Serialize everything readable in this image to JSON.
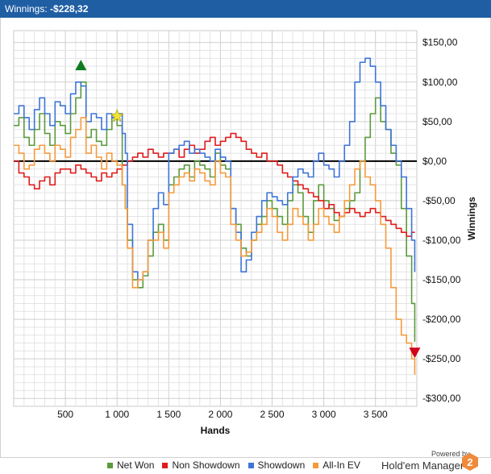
{
  "titlebar": {
    "label": "Winnings:",
    "amount": "-$228,32"
  },
  "chart_data": {
    "type": "line",
    "xlabel": "Hands",
    "ylabel": "Winnings",
    "xlim": [
      0,
      3900
    ],
    "ylim": [
      -310,
      165
    ],
    "x_ticks": [
      {
        "value": 500,
        "label": "500"
      },
      {
        "value": 1000,
        "label": "1 000"
      },
      {
        "value": 1500,
        "label": "1 500"
      },
      {
        "value": 2000,
        "label": "2 000"
      },
      {
        "value": 2500,
        "label": "2 500"
      },
      {
        "value": 3000,
        "label": "3 000"
      },
      {
        "value": 3500,
        "label": "3 500"
      }
    ],
    "y_ticks": [
      {
        "value": 150,
        "label": "$150,00"
      },
      {
        "value": 100,
        "label": "$100,00"
      },
      {
        "value": 50,
        "label": "$50,00"
      },
      {
        "value": 0,
        "label": "$0,00"
      },
      {
        "value": -50,
        "label": "-$50,00"
      },
      {
        "value": -100,
        "label": "-$100,00"
      },
      {
        "value": -150,
        "label": "-$150,00"
      },
      {
        "value": -200,
        "label": "-$200,00"
      },
      {
        "value": -250,
        "label": "-$250,00"
      },
      {
        "value": -300,
        "label": "-$300,00"
      }
    ],
    "grid": true,
    "legend_position": "bottom",
    "zero_line": true,
    "series": [
      {
        "name": "Net Won",
        "color": "#5b9a3c",
        "x": [
          0,
          50,
          100,
          150,
          200,
          250,
          300,
          350,
          400,
          450,
          500,
          550,
          600,
          650,
          700,
          750,
          800,
          850,
          900,
          950,
          1000,
          1050,
          1080,
          1100,
          1150,
          1200,
          1250,
          1300,
          1350,
          1400,
          1450,
          1500,
          1550,
          1600,
          1650,
          1700,
          1750,
          1800,
          1850,
          1900,
          1950,
          2000,
          2050,
          2100,
          2150,
          2200,
          2250,
          2300,
          2350,
          2400,
          2450,
          2500,
          2550,
          2600,
          2650,
          2700,
          2750,
          2800,
          2850,
          2900,
          2950,
          3000,
          3050,
          3100,
          3150,
          3200,
          3250,
          3300,
          3350,
          3400,
          3450,
          3500,
          3550,
          3600,
          3650,
          3700,
          3750,
          3800,
          3850,
          3880
        ],
        "y": [
          45,
          55,
          30,
          20,
          40,
          60,
          35,
          20,
          50,
          45,
          35,
          60,
          80,
          100,
          30,
          40,
          25,
          20,
          40,
          55,
          45,
          -30,
          -60,
          -100,
          -150,
          -160,
          -145,
          -120,
          -90,
          -80,
          -100,
          -30,
          -20,
          -10,
          -5,
          -20,
          0,
          -5,
          -10,
          -20,
          10,
          -5,
          -10,
          -60,
          -80,
          -110,
          -120,
          -100,
          -80,
          -70,
          -50,
          -60,
          -70,
          -80,
          -50,
          -30,
          -40,
          -70,
          -90,
          -50,
          -30,
          -50,
          -60,
          -75,
          -70,
          -60,
          -50,
          -40,
          0,
          30,
          60,
          80,
          50,
          40,
          10,
          -5,
          -60,
          -120,
          -180,
          -228.32
        ]
      },
      {
        "name": "Non Showdown",
        "color": "#e01b1b",
        "x": [
          0,
          50,
          100,
          150,
          200,
          250,
          300,
          350,
          400,
          450,
          500,
          550,
          600,
          650,
          700,
          750,
          800,
          850,
          900,
          950,
          1000,
          1050,
          1100,
          1150,
          1200,
          1250,
          1300,
          1350,
          1400,
          1450,
          1500,
          1550,
          1600,
          1650,
          1700,
          1750,
          1800,
          1850,
          1900,
          1950,
          2000,
          2050,
          2100,
          2150,
          2200,
          2250,
          2300,
          2350,
          2400,
          2450,
          2500,
          2550,
          2600,
          2650,
          2700,
          2750,
          2800,
          2850,
          2900,
          2950,
          3000,
          3050,
          3100,
          3150,
          3200,
          3250,
          3300,
          3350,
          3400,
          3450,
          3500,
          3550,
          3600,
          3650,
          3700,
          3750,
          3800,
          3850,
          3880
        ],
        "y": [
          0,
          -15,
          -20,
          -30,
          -35,
          -25,
          -20,
          -30,
          -15,
          -10,
          -10,
          -15,
          -5,
          -10,
          -15,
          -20,
          -25,
          -15,
          -20,
          -15,
          -10,
          -5,
          0,
          5,
          10,
          5,
          15,
          10,
          5,
          10,
          10,
          15,
          5,
          15,
          20,
          10,
          15,
          25,
          30,
          20,
          25,
          30,
          35,
          30,
          25,
          15,
          10,
          5,
          10,
          0,
          0,
          -5,
          -15,
          -20,
          -25,
          -30,
          -35,
          -40,
          -45,
          -50,
          -60,
          -55,
          -65,
          -70,
          -65,
          -60,
          -65,
          -70,
          -65,
          -60,
          -65,
          -70,
          -75,
          -80,
          -85,
          -90,
          -95,
          -90,
          -90
        ]
      },
      {
        "name": "Showdown",
        "color": "#3d74d8",
        "x": [
          0,
          50,
          100,
          150,
          200,
          250,
          300,
          350,
          400,
          450,
          500,
          550,
          600,
          650,
          700,
          750,
          800,
          850,
          900,
          950,
          1000,
          1050,
          1080,
          1100,
          1150,
          1200,
          1250,
          1300,
          1350,
          1400,
          1450,
          1500,
          1550,
          1600,
          1650,
          1700,
          1750,
          1800,
          1850,
          1900,
          1950,
          2000,
          2050,
          2100,
          2150,
          2200,
          2250,
          2300,
          2350,
          2400,
          2450,
          2500,
          2550,
          2600,
          2650,
          2700,
          2750,
          2800,
          2850,
          2900,
          2950,
          3000,
          3050,
          3100,
          3150,
          3200,
          3250,
          3300,
          3350,
          3400,
          3450,
          3500,
          3550,
          3600,
          3650,
          3700,
          3750,
          3800,
          3850,
          3880
        ],
        "y": [
          60,
          70,
          55,
          40,
          65,
          80,
          60,
          45,
          75,
          70,
          60,
          85,
          100,
          95,
          50,
          60,
          55,
          40,
          60,
          55,
          60,
          35,
          10,
          -80,
          -140,
          -150,
          -140,
          -100,
          -60,
          -40,
          -55,
          10,
          15,
          20,
          25,
          10,
          15,
          10,
          5,
          0,
          15,
          5,
          0,
          -60,
          -90,
          -140,
          -125,
          -90,
          -70,
          -50,
          -40,
          -45,
          -50,
          -55,
          -40,
          -20,
          -10,
          -15,
          -20,
          0,
          10,
          -5,
          -10,
          -20,
          0,
          20,
          50,
          100,
          125,
          130,
          120,
          100,
          70,
          40,
          20,
          0,
          -20,
          -60,
          -100,
          -140
        ]
      },
      {
        "name": "All-In EV",
        "color": "#f59a3c",
        "x": [
          0,
          50,
          100,
          150,
          200,
          250,
          300,
          350,
          400,
          450,
          500,
          550,
          600,
          650,
          700,
          750,
          800,
          850,
          900,
          950,
          1000,
          1050,
          1080,
          1100,
          1150,
          1200,
          1250,
          1300,
          1350,
          1400,
          1450,
          1500,
          1550,
          1600,
          1650,
          1700,
          1750,
          1800,
          1850,
          1900,
          1950,
          2000,
          2050,
          2100,
          2150,
          2200,
          2250,
          2300,
          2350,
          2400,
          2450,
          2500,
          2550,
          2600,
          2650,
          2700,
          2750,
          2800,
          2850,
          2900,
          2950,
          3000,
          3050,
          3100,
          3150,
          3200,
          3250,
          3300,
          3350,
          3400,
          3450,
          3500,
          3550,
          3600,
          3650,
          3700,
          3750,
          3800,
          3850,
          3880
        ],
        "y": [
          20,
          10,
          -10,
          -5,
          15,
          20,
          10,
          0,
          20,
          15,
          5,
          30,
          40,
          55,
          10,
          20,
          5,
          -10,
          10,
          0,
          -5,
          -30,
          -60,
          -110,
          -160,
          -150,
          -140,
          -100,
          -100,
          -90,
          -110,
          -40,
          -30,
          -20,
          -15,
          -25,
          -10,
          -15,
          -25,
          -30,
          0,
          -15,
          -20,
          -80,
          -100,
          -120,
          -115,
          -100,
          -90,
          -80,
          -60,
          -70,
          -90,
          -100,
          -80,
          -60,
          -70,
          -80,
          -100,
          -80,
          -60,
          -70,
          -80,
          -90,
          -70,
          -50,
          -30,
          -10,
          0,
          -20,
          -30,
          -50,
          -80,
          -110,
          -160,
          -200,
          -220,
          -230,
          -250,
          -270
        ]
      }
    ],
    "markers": [
      {
        "type": "triangle-up",
        "color": "#0f7a1f",
        "x": 650,
        "y": 120
      },
      {
        "type": "star",
        "color": "#f2e437",
        "x": 1000,
        "y": 57
      },
      {
        "type": "triangle-down",
        "color": "#d0021b",
        "x": 3880,
        "y": -242
      }
    ]
  },
  "legend": [
    {
      "label": "Net Won",
      "color": "#5b9a3c"
    },
    {
      "label": "Non Showdown",
      "color": "#e01b1b"
    },
    {
      "label": "Showdown",
      "color": "#3d74d8"
    },
    {
      "label": "All-In EV",
      "color": "#f59a3c"
    }
  ],
  "branding": {
    "powered_by": "Powered by",
    "product": "Hold'em Manager",
    "badge_text": "2",
    "badge_color": "#f08a3a"
  }
}
